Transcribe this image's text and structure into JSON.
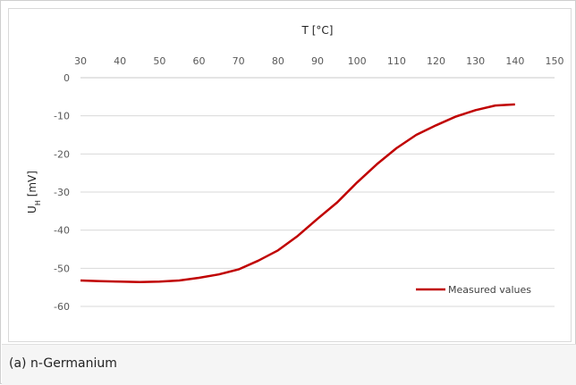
{
  "caption": "(a) n-Germanium",
  "colors": {
    "series": "#c00000",
    "grid": "#d9d9d9",
    "axis_text": "#595959"
  },
  "chart_data": {
    "type": "line",
    "xlabel": "T [°C]",
    "ylabel": "U_H [mV]",
    "ylabel_main": "U",
    "ylabel_sub": "H",
    "ylabel_unit": " [mV]",
    "xlim": [
      30,
      150
    ],
    "ylim": [
      -60,
      0
    ],
    "xticks": [
      30,
      40,
      50,
      60,
      70,
      80,
      90,
      100,
      110,
      120,
      130,
      140,
      150
    ],
    "yticks": [
      0,
      -10,
      -20,
      -30,
      -40,
      -50,
      -60
    ],
    "x_axis_position": "top",
    "grid": "horizontal",
    "legend_position": "bottom-right",
    "series": [
      {
        "name": "Measured values",
        "x": [
          30,
          35,
          40,
          45,
          50,
          55,
          60,
          65,
          70,
          75,
          80,
          85,
          90,
          95,
          100,
          105,
          110,
          115,
          120,
          125,
          130,
          135,
          140
        ],
        "y": [
          -53.2,
          -53.4,
          -53.5,
          -53.6,
          -53.5,
          -53.2,
          -52.5,
          -51.6,
          -50.3,
          -48.0,
          -45.3,
          -41.5,
          -37.0,
          -32.7,
          -27.5,
          -22.7,
          -18.5,
          -15.0,
          -12.5,
          -10.2,
          -8.5,
          -7.3,
          -7.0
        ]
      }
    ]
  }
}
